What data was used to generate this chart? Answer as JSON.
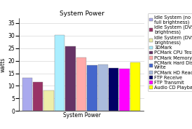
{
  "title": "System Power",
  "xlabel": "System Power",
  "ylabel": "watts",
  "series": [
    {
      "label": "Idle System (no DVS,\nfull brightness)",
      "value": 13.2,
      "color": "#aaaaee"
    },
    {
      "label": "Idle System (DVS, full\nbrightness)",
      "value": 11.5,
      "color": "#993366"
    },
    {
      "label": "Idle System (DVS, low\nbrightness)",
      "value": 8.2,
      "color": "#eeeeaa"
    },
    {
      "label": "3DMark",
      "value": 30.1,
      "color": "#aaeeff"
    },
    {
      "label": "PCMark CPU Test",
      "value": 25.8,
      "color": "#663366"
    },
    {
      "label": "PCMark Memory Test",
      "value": 21.3,
      "color": "#ffaaaa"
    },
    {
      "label": "PCMark Hard Disk\nWrite",
      "value": 18.1,
      "color": "#4466cc"
    },
    {
      "label": "PCMark HD Read",
      "value": 18.5,
      "color": "#aabbdd"
    },
    {
      "label": "FTP Receive",
      "value": 17.1,
      "color": "#000066"
    },
    {
      "label": "FTP Transmit",
      "value": 16.9,
      "color": "#ff00ff"
    },
    {
      "label": "Audio CD Playback",
      "value": 19.2,
      "color": "#ffff00"
    }
  ],
  "ylim": [
    0,
    37
  ],
  "yticks": [
    0,
    5,
    10,
    15,
    20,
    25,
    30,
    35
  ],
  "bg_color": "#ffffff",
  "plot_bg": "#ffffff",
  "title_fontsize": 6.5,
  "axis_fontsize": 5.5,
  "legend_fontsize": 4.8,
  "bar_width": 0.07,
  "bar_gap": 0.005
}
